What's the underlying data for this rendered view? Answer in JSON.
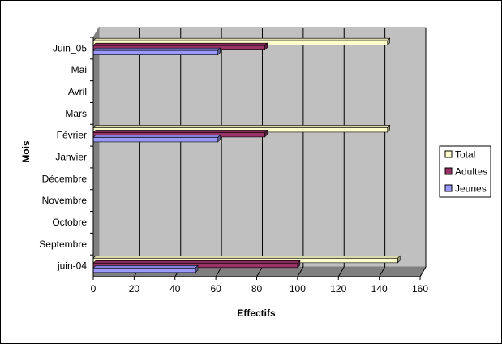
{
  "chart_data": {
    "type": "bar",
    "orientation": "horizontal",
    "style": "3d",
    "categories": [
      "juin-04",
      "Septembre",
      "Octobre",
      "Novembre",
      "Décembre",
      "Janvier",
      "Février",
      "Mars",
      "Avril",
      "Mai",
      "Juin_05"
    ],
    "series": [
      {
        "name": "Jeunes",
        "values": [
          50,
          0,
          0,
          0,
          0,
          0,
          61,
          0,
          0,
          0,
          61
        ]
      },
      {
        "name": "Adultes",
        "values": [
          100,
          0,
          0,
          0,
          0,
          0,
          84,
          0,
          0,
          0,
          84
        ]
      },
      {
        "name": "Total",
        "values": [
          149,
          0,
          0,
          0,
          0,
          0,
          144,
          0,
          0,
          0,
          144
        ]
      }
    ],
    "xlabel": "Effectifs",
    "ylabel": "Mois",
    "xlim": [
      0,
      160
    ],
    "xticks": [
      "0",
      "20",
      "40",
      "60",
      "80",
      "100",
      "120",
      "140",
      "160"
    ],
    "grid": true,
    "legend_position": "right",
    "colors": {
      "Jeunes": "#9999ff",
      "Adultes": "#993366",
      "Total": "#ffffcc",
      "plot_background": "#c0c0c0",
      "gridlines": "#000000"
    }
  }
}
